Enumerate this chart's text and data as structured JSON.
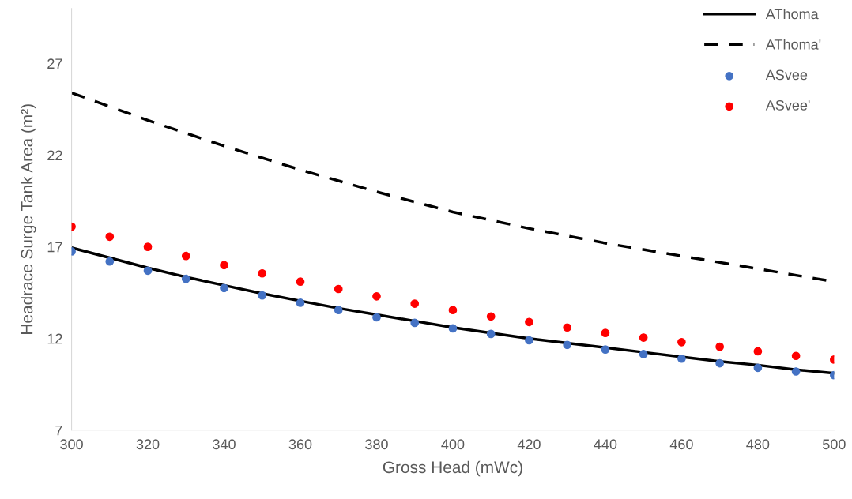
{
  "chart_data": {
    "type": "line",
    "xlabel": "Gross Head (mWc)",
    "ylabel": "Headrace Surge Tank Area (m²)",
    "xlim": [
      300,
      500
    ],
    "xticks": [
      300,
      320,
      340,
      360,
      380,
      400,
      420,
      440,
      460,
      480,
      500
    ],
    "ylim": [
      7,
      30
    ],
    "yticks": [
      7,
      12,
      17,
      22,
      27
    ],
    "grid": false,
    "legend": "top right",
    "series": [
      {
        "name": "AThoma",
        "line_style": "solid",
        "marker": "none",
        "color": "#000000",
        "x": [
          300,
          310,
          320,
          330,
          340,
          350,
          360,
          370,
          380,
          390,
          400,
          410,
          420,
          430,
          440,
          450,
          460,
          470,
          480,
          490,
          500
        ],
        "values": [
          16.95,
          16.4,
          15.85,
          15.35,
          14.9,
          14.45,
          14.05,
          13.65,
          13.3,
          12.95,
          12.6,
          12.3,
          12.0,
          11.75,
          11.5,
          11.25,
          11.0,
          10.75,
          10.55,
          10.3,
          10.1
        ]
      },
      {
        "name": "AThoma'",
        "line_style": "dashed",
        "marker": "none",
        "color": "#000000",
        "x": [
          300,
          320,
          340,
          360,
          380,
          400,
          420,
          440,
          460,
          480,
          500
        ],
        "values": [
          25.4,
          23.9,
          22.5,
          21.2,
          20.0,
          18.9,
          18.0,
          17.2,
          16.5,
          15.8,
          15.1
        ]
      },
      {
        "name": "ASvee",
        "type": "scatter",
        "marker": "circle",
        "color": "#4472c4",
        "x": [
          300,
          310,
          320,
          330,
          340,
          350,
          360,
          370,
          380,
          390,
          400,
          410,
          420,
          430,
          440,
          450,
          460,
          470,
          480,
          490,
          500
        ],
        "values": [
          16.75,
          16.2,
          15.7,
          15.25,
          14.75,
          14.35,
          13.95,
          13.55,
          13.15,
          12.85,
          12.55,
          12.25,
          11.9,
          11.65,
          11.4,
          11.15,
          10.9,
          10.65,
          10.4,
          10.2,
          10.0
        ]
      },
      {
        "name": "ASvee'",
        "type": "scatter",
        "marker": "circle",
        "color": "#ff0000",
        "x": [
          300,
          310,
          320,
          330,
          340,
          350,
          360,
          370,
          380,
          390,
          400,
          410,
          420,
          430,
          440,
          450,
          460,
          470,
          480,
          490,
          500
        ],
        "values": [
          18.1,
          17.55,
          17.0,
          16.5,
          16.0,
          15.55,
          15.1,
          14.7,
          14.3,
          13.9,
          13.55,
          13.2,
          12.9,
          12.6,
          12.3,
          12.05,
          11.8,
          11.55,
          11.3,
          11.05,
          10.85
        ]
      }
    ]
  }
}
